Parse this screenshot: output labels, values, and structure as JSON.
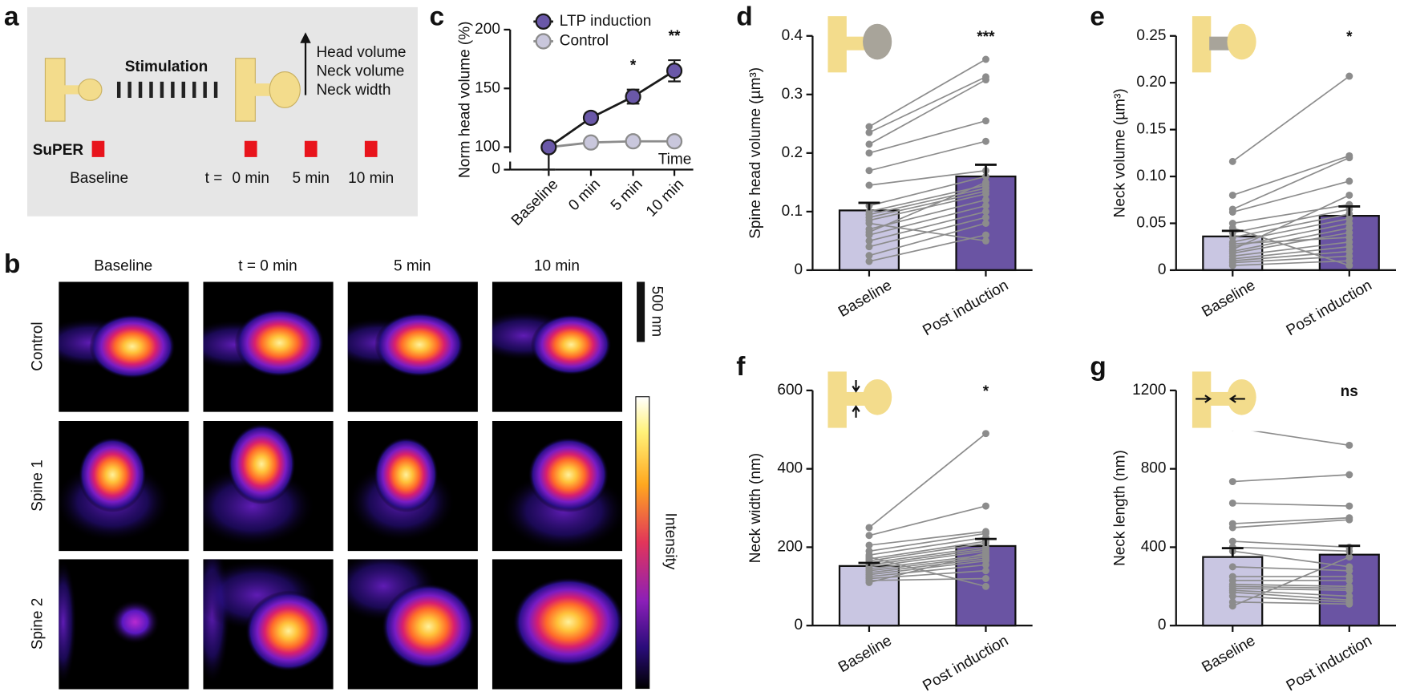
{
  "panel_a": {
    "label": "a",
    "stimulation": "Stimulation",
    "effects": [
      "Head volume",
      "Neck volume",
      "Neck width"
    ],
    "method": "SuPER",
    "baseline": "Baseline",
    "time_prefix": "t =",
    "times": [
      "0 min",
      "5 min",
      "10 min"
    ]
  },
  "panel_b": {
    "label": "b",
    "columns": [
      "Baseline",
      "t = 0 min",
      "5 min",
      "10 min"
    ],
    "rows": [
      "Control",
      "Spine 1",
      "Spine 2"
    ],
    "scale_bar": "500 nm",
    "colorbar_label": "Intensity"
  },
  "chart_data": [
    {
      "label": "c",
      "type": "line",
      "ylabel": "Norm head volume (%)",
      "xlabel": "Time",
      "categories": [
        "Baseline",
        "0 min",
        "5 min",
        "10 min"
      ],
      "series": [
        {
          "name": "LTP induction",
          "color": "#6a58a8",
          "line_color": "#1a1a1a",
          "values": [
            100,
            125,
            143,
            165
          ],
          "errors": [
            2,
            4,
            6,
            9
          ]
        },
        {
          "name": "Control",
          "color": "#c9c7dc",
          "line_color": "#8c8c8c",
          "values": [
            100,
            104,
            105,
            105
          ],
          "errors": [
            2,
            3,
            3,
            3
          ]
        }
      ],
      "ylim": [
        0,
        200
      ],
      "yticks": [
        0,
        100,
        150,
        200
      ],
      "axis_break": [
        0,
        100
      ],
      "annotations": [
        {
          "text": "*",
          "category": 2
        },
        {
          "text": "**",
          "category": 3
        }
      ]
    },
    {
      "label": "d",
      "type": "bar",
      "ylabel": "Spine head volume (µm³)",
      "categories": [
        "Baseline",
        "Post induction"
      ],
      "values": [
        0.102,
        0.16
      ],
      "errors": [
        0.013,
        0.02
      ],
      "colors": [
        "#c9c6e2",
        "#6a54a3"
      ],
      "point_color": "#8c8c8c",
      "points": [
        [
          0.245,
          0.235,
          0.215,
          0.2,
          0.17,
          0.145,
          0.11,
          0.1,
          0.095,
          0.085,
          0.07,
          0.06,
          0.05,
          0.04,
          0.025,
          0.015,
          0.08,
          0.09,
          0.065
        ],
        [
          0.36,
          0.33,
          0.325,
          0.255,
          0.22,
          0.17,
          0.16,
          0.145,
          0.14,
          0.13,
          0.12,
          0.11,
          0.1,
          0.09,
          0.08,
          0.06,
          0.05,
          0.135,
          0.15
        ]
      ],
      "significance": "***",
      "ylim": [
        0,
        0.4
      ],
      "yticks": [
        0,
        0.1,
        0.2,
        0.3,
        0.4
      ]
    },
    {
      "label": "e",
      "type": "bar",
      "ylabel": "Neck volume (µm³)",
      "categories": [
        "Baseline",
        "Post induction"
      ],
      "values": [
        0.036,
        0.058
      ],
      "errors": [
        0.006,
        0.01
      ],
      "colors": [
        "#c9c6e2",
        "#6a54a3"
      ],
      "point_color": "#8c8c8c",
      "points": [
        [
          0.116,
          0.08,
          0.065,
          0.062,
          0.05,
          0.04,
          0.035,
          0.03,
          0.025,
          0.02,
          0.018,
          0.015,
          0.012,
          0.01,
          0.008,
          0.005,
          0.045,
          0.028,
          0.022
        ],
        [
          0.207,
          0.122,
          0.12,
          0.095,
          0.07,
          0.065,
          0.06,
          0.055,
          0.05,
          0.045,
          0.04,
          0.03,
          0.025,
          0.02,
          0.015,
          0.01,
          0.005,
          0.035,
          0.08
        ]
      ],
      "significance": "*",
      "ylim": [
        0,
        0.25
      ],
      "yticks": [
        0,
        0.05,
        {
          "value": 0.1,
          "label": "0.10"
        },
        0.15,
        {
          "value": 0.2,
          "label": "0.20"
        },
        0.25
      ]
    },
    {
      "label": "f",
      "type": "bar",
      "ylabel": "Neck width (nm)",
      "categories": [
        "Baseline",
        "Post induction"
      ],
      "values": [
        152,
        203
      ],
      "errors": [
        8,
        18
      ],
      "colors": [
        "#c9c6e2",
        "#6a54a3"
      ],
      "point_color": "#8c8c8c",
      "points": [
        [
          250,
          230,
          205,
          190,
          180,
          170,
          165,
          160,
          155,
          150,
          145,
          140,
          135,
          130,
          125,
          120,
          115,
          175,
          110
        ],
        [
          490,
          305,
          240,
          235,
          225,
          215,
          210,
          200,
          195,
          190,
          180,
          175,
          170,
          165,
          155,
          140,
          120,
          100,
          185
        ]
      ],
      "significance": "*",
      "ylim": [
        0,
        600
      ],
      "yticks": [
        0,
        200,
        400,
        600
      ]
    },
    {
      "label": "g",
      "type": "bar",
      "ylabel": "Neck length (nm)",
      "categories": [
        "Baseline",
        "Post induction"
      ],
      "values": [
        350,
        362
      ],
      "errors": [
        45,
        45
      ],
      "colors": [
        "#c9c6e2",
        "#6a54a3"
      ],
      "point_color": "#8c8c8c",
      "points": [
        [
          1010,
          735,
          625,
          520,
          500,
          430,
          400,
          380,
          300,
          250,
          230,
          210,
          200,
          190,
          180,
          170,
          150,
          120,
          100
        ],
        [
          920,
          770,
          610,
          550,
          540,
          400,
          380,
          300,
          280,
          250,
          230,
          200,
          190,
          180,
          150,
          130,
          120,
          110,
          350
        ]
      ],
      "significance": "ns",
      "ylim": [
        0,
        1200
      ],
      "yticks": [
        0,
        400,
        800,
        1200
      ]
    }
  ]
}
